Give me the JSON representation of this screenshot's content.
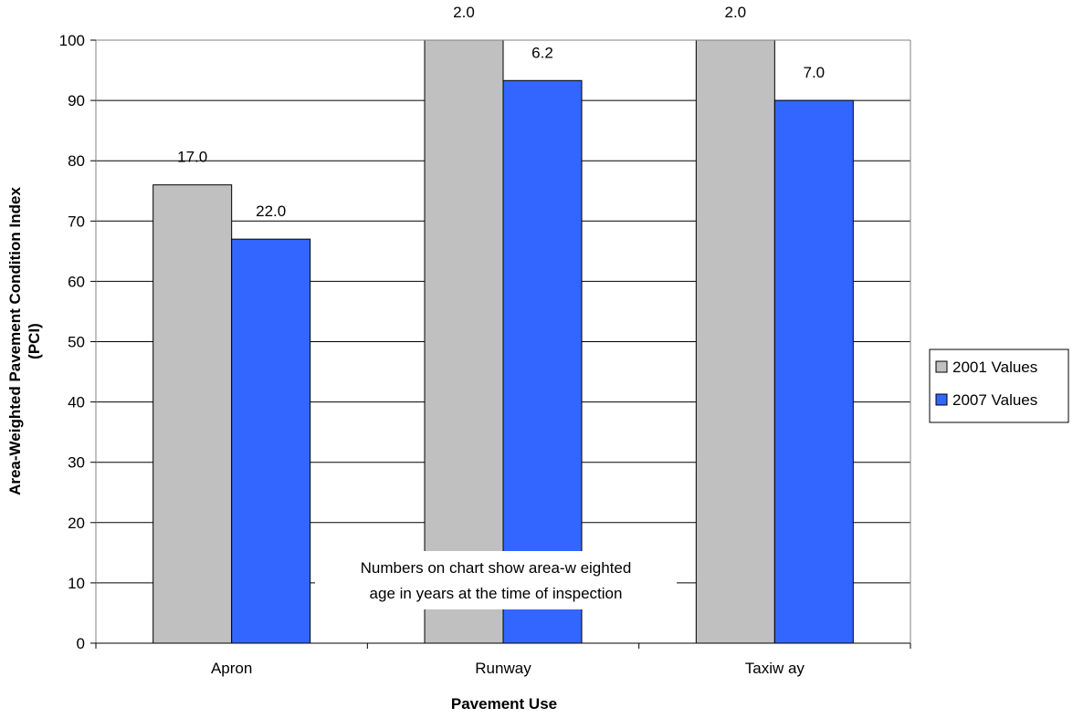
{
  "chart_data": {
    "type": "bar",
    "categories": [
      "Apron",
      "Runway",
      "Taxiw ay"
    ],
    "series": [
      {
        "name": "2001 Values",
        "values": [
          76,
          100,
          100
        ],
        "labels": [
          "17.0",
          "2.0",
          "2.0"
        ],
        "color": "#c0c0c0"
      },
      {
        "name": "2007 Values",
        "values": [
          67,
          93.3,
          90
        ],
        "labels": [
          "22.0",
          "6.2",
          "7.0"
        ],
        "color": "#3366ff"
      }
    ],
    "xlabel": "Pavement Use",
    "ylabel_lines": [
      "Area-Weighted Pavement Condition Index",
      "(PCI)"
    ],
    "ylim": [
      0,
      100
    ],
    "yticks": [
      0,
      10,
      20,
      30,
      40,
      50,
      60,
      70,
      80,
      90,
      100
    ],
    "grid": true,
    "legend_position": "right",
    "annotation_lines": [
      "Numbers on chart show  area-w eighted",
      "age in years at the time of inspection"
    ]
  }
}
